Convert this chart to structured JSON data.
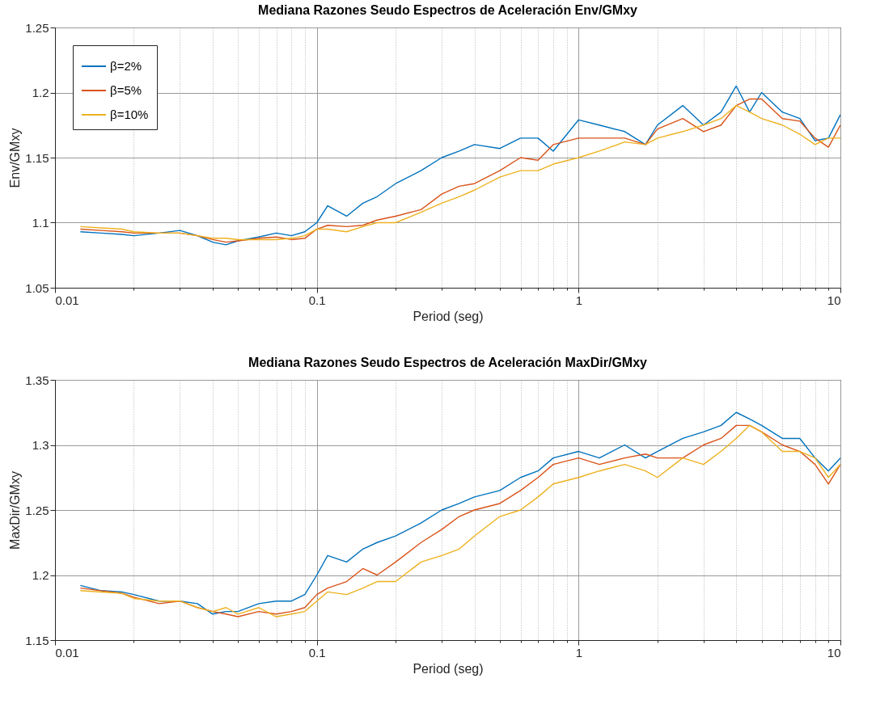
{
  "chart_data": [
    {
      "type": "line",
      "title": "Mediana Razones Seudo Espectros de Aceleración Env/GMxy",
      "xlabel": "Period (seg)",
      "ylabel": "Env/GMxy",
      "log": "x",
      "grid": true,
      "legend": "top left",
      "xlim": [
        0.01,
        10
      ],
      "xticks": [
        0.01,
        {
          "value": 0.02,
          "label": null
        },
        {
          "value": 0.03,
          "label": null
        },
        {
          "value": 0.04,
          "label": null
        },
        {
          "value": 0.05,
          "label": null
        },
        {
          "value": 0.06,
          "label": null
        },
        {
          "value": 0.07,
          "label": null
        },
        {
          "value": 0.08,
          "label": null
        },
        {
          "value": 0.09,
          "label": null
        },
        0.1,
        {
          "value": 0.2,
          "label": null
        },
        {
          "value": 0.3,
          "label": null
        },
        {
          "value": 0.4,
          "label": null
        },
        {
          "value": 0.5,
          "label": null
        },
        {
          "value": 0.6,
          "label": null
        },
        {
          "value": 0.7,
          "label": null
        },
        {
          "value": 0.8,
          "label": null
        },
        {
          "value": 0.9,
          "label": null
        },
        1,
        {
          "value": 2,
          "label": null
        },
        {
          "value": 3,
          "label": null
        },
        {
          "value": 4,
          "label": null
        },
        {
          "value": 5,
          "label": null
        },
        {
          "value": 6,
          "label": null
        },
        {
          "value": 7,
          "label": null
        },
        {
          "value": 8,
          "label": null
        },
        {
          "value": 9,
          "label": null
        },
        10
      ],
      "ylim": [
        1.05,
        1.25
      ],
      "yticks": [
        1.05,
        1.1,
        1.15,
        1.2,
        1.25
      ],
      "x": [
        0.0125,
        0.015,
        0.018,
        0.02,
        0.025,
        0.03,
        0.035,
        0.04,
        0.045,
        0.05,
        0.06,
        0.07,
        0.08,
        0.09,
        0.1,
        0.11,
        0.13,
        0.15,
        0.17,
        0.2,
        0.25,
        0.3,
        0.35,
        0.4,
        0.5,
        0.6,
        0.7,
        0.8,
        1,
        1.2,
        1.5,
        1.8,
        2,
        2.5,
        3,
        3.5,
        4,
        4.5,
        5,
        6,
        7,
        8,
        9,
        10
      ],
      "series": [
        {
          "name": "β=2%",
          "color": "#0072bd",
          "values": [
            1.093,
            1.092,
            1.091,
            1.09,
            1.092,
            1.094,
            1.09,
            1.085,
            1.083,
            1.086,
            1.089,
            1.092,
            1.09,
            1.093,
            1.1,
            1.113,
            1.105,
            1.115,
            1.12,
            1.13,
            1.14,
            1.15,
            1.155,
            1.16,
            1.157,
            1.165,
            1.165,
            1.155,
            1.179,
            1.175,
            1.17,
            1.16,
            1.175,
            1.19,
            1.175,
            1.185,
            1.205,
            1.185,
            1.2,
            1.185,
            1.18,
            1.163,
            1.165,
            1.183
          ]
        },
        {
          "name": "β=5%",
          "color": "#d95319",
          "values": [
            1.095,
            1.094,
            1.093,
            1.092,
            1.092,
            1.092,
            1.09,
            1.087,
            1.085,
            1.086,
            1.088,
            1.089,
            1.087,
            1.088,
            1.095,
            1.098,
            1.097,
            1.098,
            1.102,
            1.105,
            1.11,
            1.122,
            1.128,
            1.13,
            1.14,
            1.15,
            1.148,
            1.16,
            1.165,
            1.165,
            1.165,
            1.16,
            1.172,
            1.18,
            1.17,
            1.175,
            1.19,
            1.195,
            1.195,
            1.18,
            1.178,
            1.165,
            1.158,
            1.175
          ]
        },
        {
          "name": "β=10%",
          "color": "#edb120",
          "values": [
            1.097,
            1.096,
            1.095,
            1.093,
            1.092,
            1.092,
            1.09,
            1.088,
            1.088,
            1.087,
            1.087,
            1.087,
            1.088,
            1.09,
            1.095,
            1.095,
            1.093,
            1.097,
            1.1,
            1.1,
            1.108,
            1.115,
            1.12,
            1.125,
            1.135,
            1.14,
            1.14,
            1.145,
            1.15,
            1.155,
            1.162,
            1.16,
            1.165,
            1.17,
            1.175,
            1.18,
            1.19,
            1.185,
            1.18,
            1.175,
            1.168,
            1.16,
            1.165,
            1.165
          ]
        }
      ]
    },
    {
      "type": "line",
      "title": "Mediana Razones Seudo Espectros de Aceleración MaxDir/GMxy",
      "xlabel": "Period (seg)",
      "ylabel": "MaxDir/GMxy",
      "log": "x",
      "grid": true,
      "legend": "top left",
      "xlim": [
        0.01,
        10
      ],
      "xticks": [
        0.01,
        {
          "value": 0.02,
          "label": null
        },
        {
          "value": 0.03,
          "label": null
        },
        {
          "value": 0.04,
          "label": null
        },
        {
          "value": 0.05,
          "label": null
        },
        {
          "value": 0.06,
          "label": null
        },
        {
          "value": 0.07,
          "label": null
        },
        {
          "value": 0.08,
          "label": null
        },
        {
          "value": 0.09,
          "label": null
        },
        0.1,
        {
          "value": 0.2,
          "label": null
        },
        {
          "value": 0.3,
          "label": null
        },
        {
          "value": 0.4,
          "label": null
        },
        {
          "value": 0.5,
          "label": null
        },
        {
          "value": 0.6,
          "label": null
        },
        {
          "value": 0.7,
          "label": null
        },
        {
          "value": 0.8,
          "label": null
        },
        {
          "value": 0.9,
          "label": null
        },
        1,
        {
          "value": 2,
          "label": null
        },
        {
          "value": 3,
          "label": null
        },
        {
          "value": 4,
          "label": null
        },
        {
          "value": 5,
          "label": null
        },
        {
          "value": 6,
          "label": null
        },
        {
          "value": 7,
          "label": null
        },
        {
          "value": 8,
          "label": null
        },
        {
          "value": 9,
          "label": null
        },
        10
      ],
      "ylim": [
        1.15,
        1.35
      ],
      "yticks": [
        1.15,
        1.2,
        1.25,
        1.3,
        1.35
      ],
      "x": [
        0.0125,
        0.015,
        0.018,
        0.02,
        0.025,
        0.03,
        0.035,
        0.04,
        0.045,
        0.05,
        0.06,
        0.07,
        0.08,
        0.09,
        0.1,
        0.11,
        0.13,
        0.15,
        0.17,
        0.2,
        0.25,
        0.3,
        0.35,
        0.4,
        0.5,
        0.6,
        0.7,
        0.8,
        1,
        1.2,
        1.5,
        1.8,
        2,
        2.5,
        3,
        3.5,
        4,
        4.5,
        5,
        6,
        7,
        8,
        9,
        10
      ],
      "series": [
        {
          "name": "β=2%",
          "color": "#0072bd",
          "values": [
            1.192,
            1.188,
            1.187,
            1.185,
            1.18,
            1.18,
            1.178,
            1.17,
            1.172,
            1.172,
            1.178,
            1.18,
            1.18,
            1.185,
            1.2,
            1.215,
            1.21,
            1.22,
            1.225,
            1.23,
            1.24,
            1.25,
            1.255,
            1.26,
            1.265,
            1.275,
            1.28,
            1.29,
            1.295,
            1.29,
            1.3,
            1.29,
            1.295,
            1.305,
            1.31,
            1.315,
            1.325,
            1.32,
            1.315,
            1.305,
            1.305,
            1.29,
            1.28,
            1.29
          ]
        },
        {
          "name": "β=5%",
          "color": "#d95319",
          "values": [
            1.19,
            1.188,
            1.186,
            1.183,
            1.178,
            1.18,
            1.175,
            1.172,
            1.17,
            1.168,
            1.172,
            1.17,
            1.172,
            1.175,
            1.185,
            1.19,
            1.195,
            1.205,
            1.2,
            1.21,
            1.225,
            1.235,
            1.245,
            1.25,
            1.255,
            1.265,
            1.275,
            1.285,
            1.29,
            1.285,
            1.29,
            1.293,
            1.29,
            1.29,
            1.3,
            1.305,
            1.315,
            1.315,
            1.31,
            1.3,
            1.295,
            1.285,
            1.27,
            1.285
          ]
        },
        {
          "name": "β=10%",
          "color": "#edb120",
          "values": [
            1.188,
            1.187,
            1.186,
            1.182,
            1.18,
            1.18,
            1.175,
            1.172,
            1.175,
            1.17,
            1.175,
            1.168,
            1.17,
            1.172,
            1.18,
            1.187,
            1.185,
            1.19,
            1.195,
            1.195,
            1.21,
            1.215,
            1.22,
            1.23,
            1.245,
            1.25,
            1.26,
            1.27,
            1.275,
            1.28,
            1.285,
            1.28,
            1.275,
            1.29,
            1.285,
            1.295,
            1.305,
            1.315,
            1.31,
            1.295,
            1.295,
            1.29,
            1.275,
            1.285
          ]
        }
      ]
    }
  ]
}
